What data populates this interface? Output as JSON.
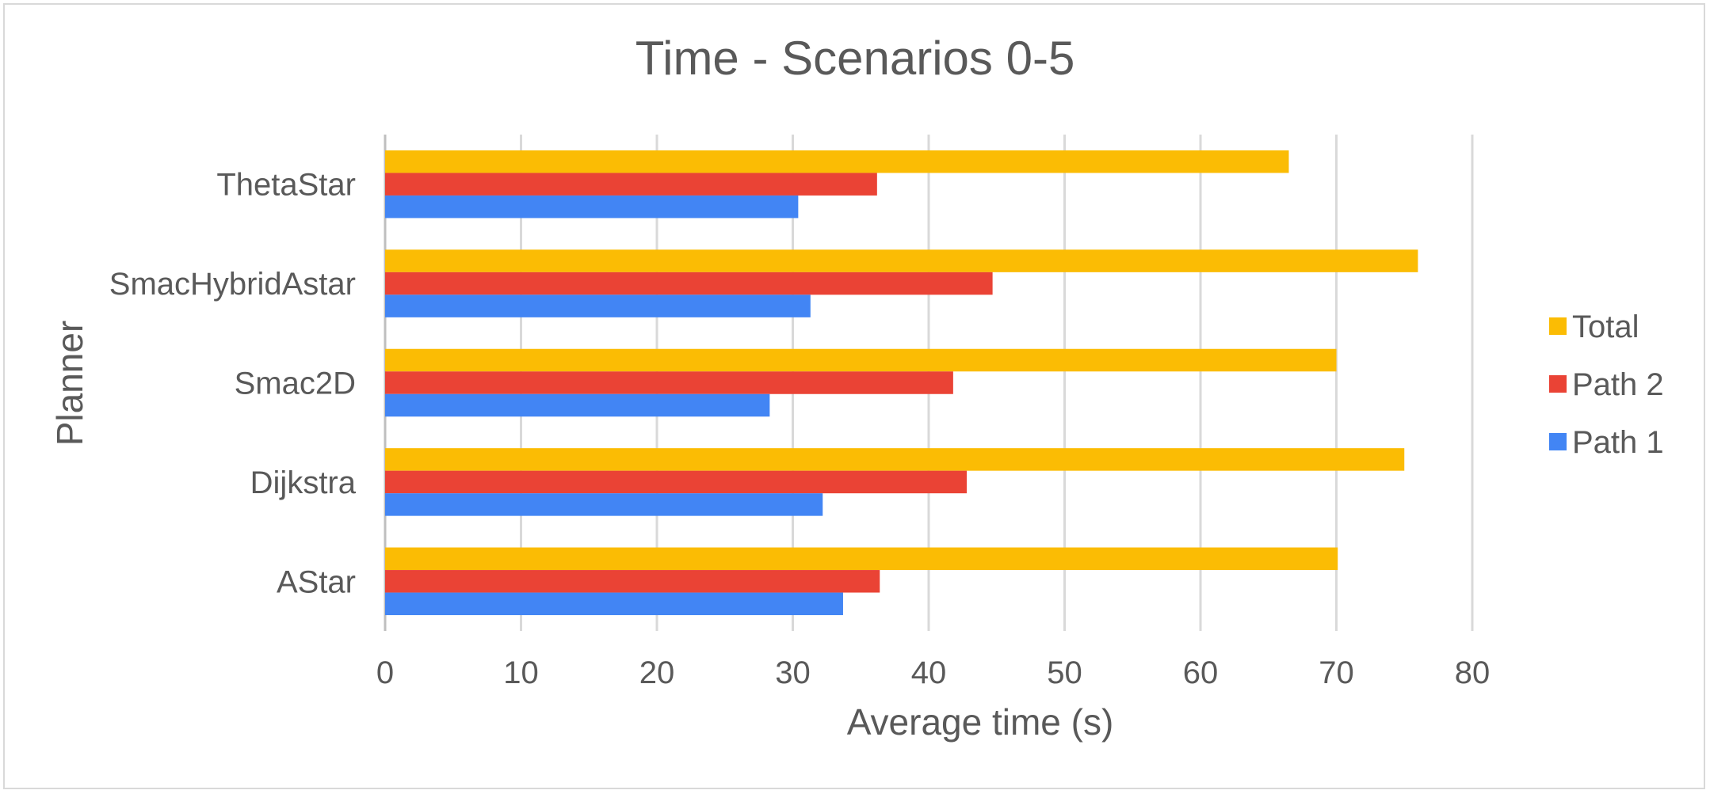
{
  "chart_data": {
    "type": "bar",
    "orientation": "horizontal",
    "title": "Time - Scenarios 0-5",
    "xlabel": "Average time (s)",
    "ylabel": "Planner",
    "categories": [
      "AStar",
      "Dijkstra",
      "Smac2D",
      "SmacHybridAstar",
      "ThetaStar"
    ],
    "series": [
      {
        "name": "Total",
        "color": "#FBBC04",
        "values": [
          70.1,
          75.0,
          70.0,
          76.0,
          66.5
        ]
      },
      {
        "name": "Path 2",
        "color": "#EA4335",
        "values": [
          36.4,
          42.8,
          41.8,
          44.7,
          36.2
        ]
      },
      {
        "name": "Path 1",
        "color": "#4285F4",
        "values": [
          33.7,
          32.2,
          28.3,
          31.3,
          30.4
        ]
      }
    ],
    "xlim": [
      0,
      80
    ],
    "xticks": [
      "0",
      "10",
      "20",
      "30",
      "40",
      "50",
      "60",
      "70",
      "80"
    ],
    "grid": true,
    "legend_position": "right"
  }
}
